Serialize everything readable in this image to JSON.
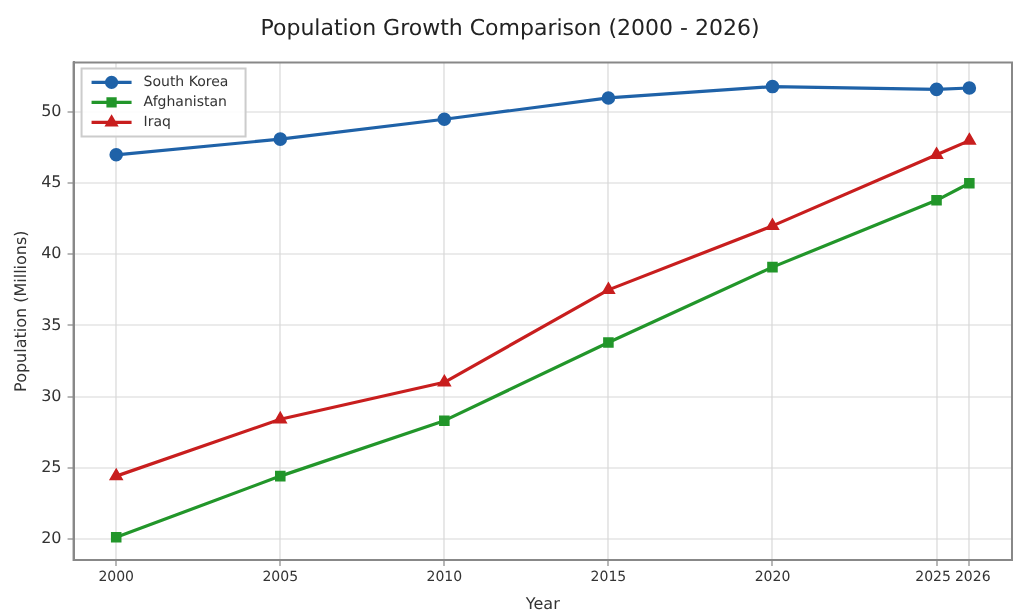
{
  "chart_data": {
    "type": "line",
    "title": "Population Growth Comparison (2000 - 2026)",
    "xlabel": "Year",
    "ylabel": "Population (Millions)",
    "x": [
      2000,
      2005,
      2010,
      2015,
      2020,
      2025,
      2026
    ],
    "series": [
      {
        "name": "South Korea",
        "color": "#1f62a8",
        "marker": "circle",
        "values": [
          47.0,
          48.1,
          49.5,
          51.0,
          51.8,
          51.6,
          51.7
        ]
      },
      {
        "name": "Afghanistan",
        "color": "#22962a",
        "marker": "square",
        "values": [
          20.1,
          24.4,
          28.3,
          33.8,
          39.1,
          43.8,
          45.0
        ]
      },
      {
        "name": "Iraq",
        "color": "#c81e1e",
        "marker": "triangle",
        "values": [
          24.4,
          28.4,
          31.0,
          37.5,
          42.0,
          47.0,
          48.0
        ]
      }
    ],
    "xlim": [
      1998.7,
      2027.3
    ],
    "xticks": [
      2000,
      2005,
      2010,
      2015,
      2020,
      2025,
      2026
    ],
    "ylim": [
      18.5,
      53.5
    ],
    "yticks": [
      20,
      25,
      30,
      35,
      40,
      45,
      50
    ],
    "grid": true,
    "legend": "top left",
    "line_style": "solid"
  }
}
